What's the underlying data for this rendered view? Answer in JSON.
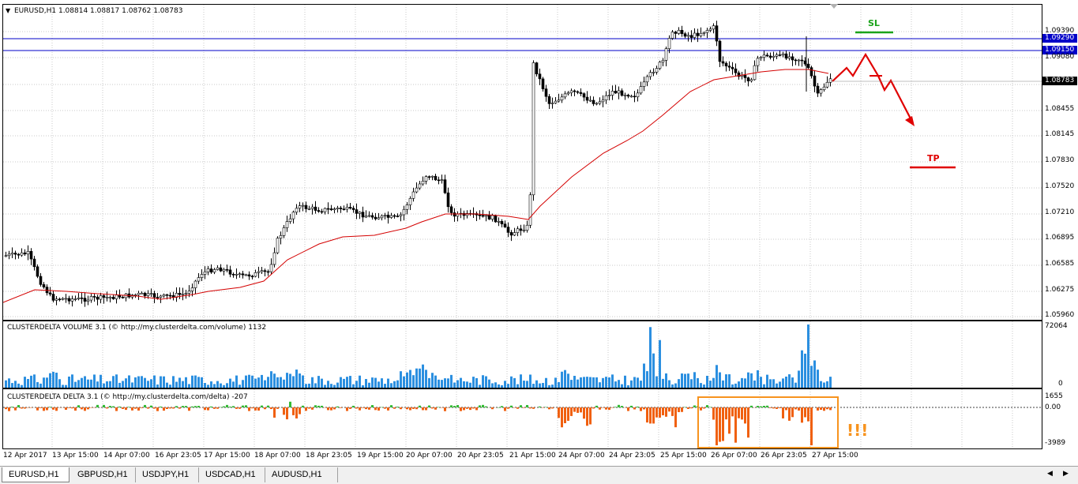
{
  "main_chart": {
    "symbol_info": "EURUSD,H1  1.08814 1.08817 1.08762 1.08783",
    "price_ticks": [
      "1.09390",
      "1.09080",
      "1.08455",
      "1.08145",
      "1.07830",
      "1.07520",
      "1.07210",
      "1.06895",
      "1.06585",
      "1.06275",
      "1.05960"
    ],
    "hline_upper": "1.09290",
    "hline_lower": "1.09150",
    "current_price": "1.08783",
    "sl_label": "SL",
    "tp_label": "TP",
    "colors": {
      "candles": "#000000",
      "ma": "#d40000",
      "hlines": "#0000c8",
      "sl": "#1aa31a",
      "tp": "#e00000",
      "arrow": "#e00000"
    }
  },
  "volume_panel": {
    "title": "CLUSTERDELTA VOLUME 3.1 (© http://my.clusterdelta.com/volume) 1132",
    "axis_max": "72064",
    "axis_min": "0",
    "bar_color": "#2b8fe0"
  },
  "delta_panel": {
    "title": "CLUSTERDELTA DELTA 3.1 (© http://my.clusterdelta.com/delta) -207",
    "axis_max": "1655",
    "axis_zero": "0.00",
    "axis_min": "-3989",
    "annotation": "!!!",
    "positive_color": "#33bb33",
    "negative_color": "#f06010",
    "highlight_color": "#f7931e"
  },
  "time_axis": [
    "12 Apr 2017",
    "13 Apr 15:00",
    "14 Apr 07:00",
    "16 Apr 23:05",
    "17 Apr 15:00",
    "18 Apr 07:00",
    "18 Apr 23:05",
    "19 Apr 15:00",
    "20 Apr 07:00",
    "20 Apr 23:05",
    "21 Apr 15:00",
    "24 Apr 07:00",
    "24 Apr 23:05",
    "25 Apr 15:00",
    "26 Apr 07:00",
    "26 Apr 23:05",
    "27 Apr 15:00"
  ],
  "tabs": [
    "EURUSD,H1",
    "GBPUSD,H1",
    "USDJPY,H1",
    "USDCAD,H1",
    "AUDUSD,H1"
  ],
  "active_tab": "EURUSD,H1"
}
